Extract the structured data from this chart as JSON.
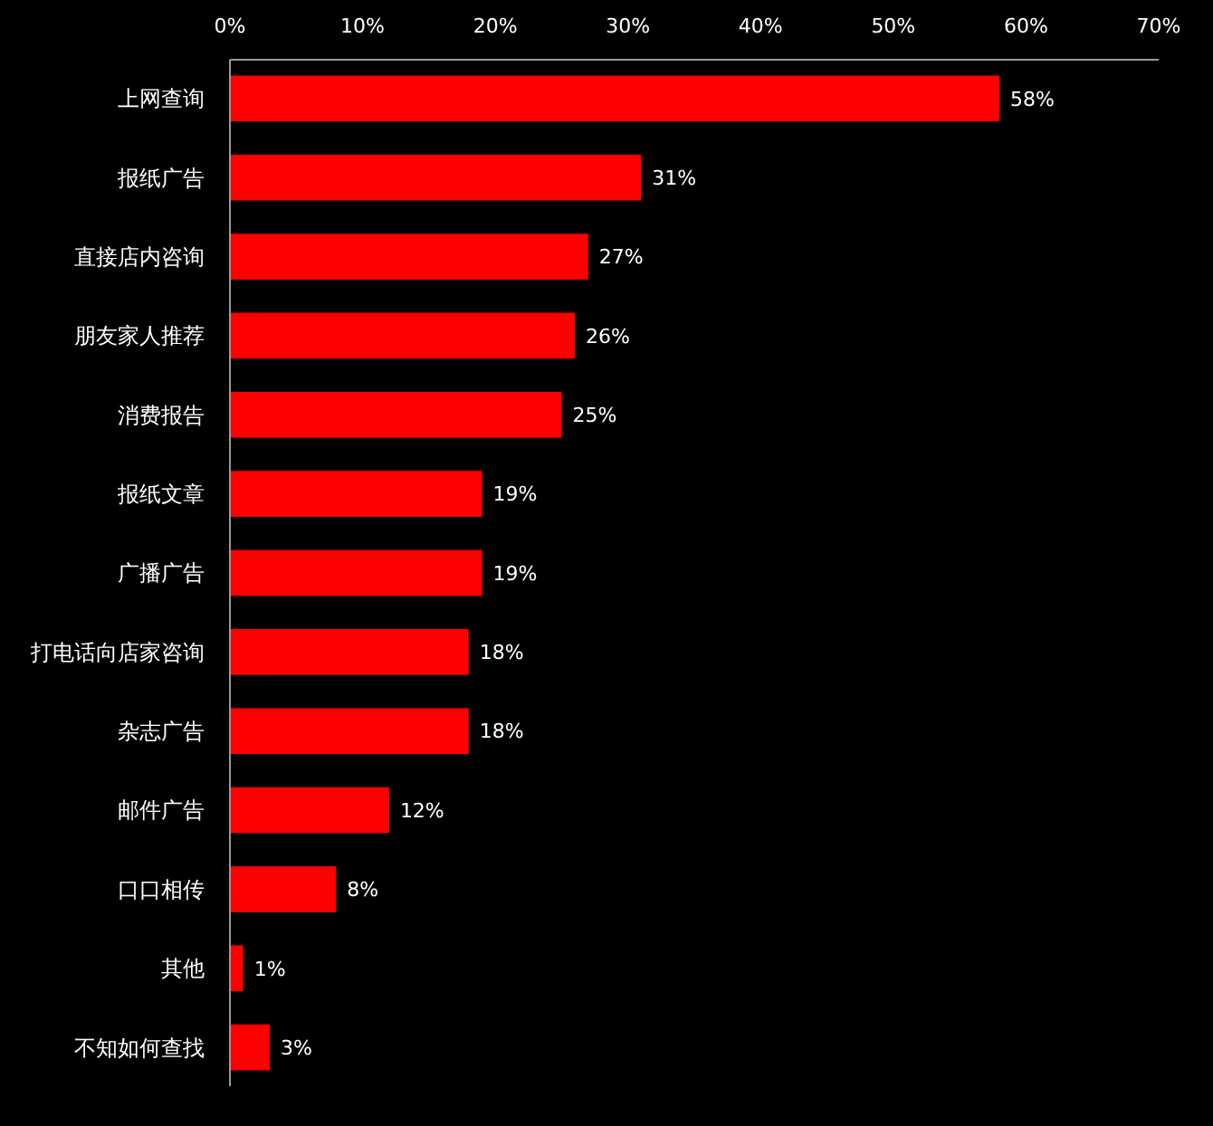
{
  "chart_data": {
    "type": "bar",
    "orientation": "horizontal",
    "categories": [
      "上网查询",
      "报纸广告",
      "直接店内咨询",
      "朋友家人推荐",
      "消费报告",
      "报纸文章",
      "广播广告",
      "打电话向店家咨询",
      "杂志广告",
      "邮件广告",
      "口口相传",
      "其他",
      "不知如何查找"
    ],
    "values": [
      58,
      31,
      27,
      26,
      25,
      19,
      19,
      18,
      18,
      12,
      8,
      1,
      3
    ],
    "value_labels": [
      "58%",
      "31%",
      "27%",
      "26%",
      "25%",
      "19%",
      "19%",
      "18%",
      "18%",
      "12%",
      "8%",
      "1%",
      "3%"
    ],
    "color": "#ff0000",
    "xlim": [
      0,
      70
    ],
    "xticks": [
      {
        "value": 0,
        "label": "0%"
      },
      {
        "value": 10,
        "label": "10%"
      },
      {
        "value": 20,
        "label": "20%"
      },
      {
        "value": 30,
        "label": "30%"
      },
      {
        "value": 40,
        "label": "40%"
      },
      {
        "value": 50,
        "label": "50%"
      },
      {
        "value": 60,
        "label": "60%"
      },
      {
        "value": 70,
        "label": "70%"
      }
    ],
    "grid": false
  }
}
